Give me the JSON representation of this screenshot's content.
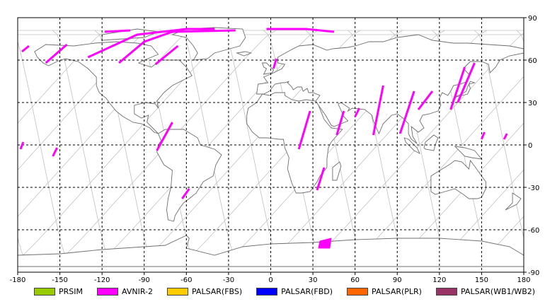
{
  "map": {
    "lon_ticks": [
      "-180",
      "-150",
      "-120",
      "-90",
      "-60",
      "-30",
      "0",
      "30",
      "60",
      "90",
      "120",
      "150",
      "180"
    ],
    "lat_ticks": [
      "90",
      "60",
      "30",
      "0",
      "-30",
      "-60",
      "-90"
    ],
    "lon_range": [
      -180,
      180
    ],
    "lat_range": [
      -90,
      90
    ],
    "grid": "dashed every 30 degrees",
    "swath_color": "#ff00ff",
    "orbit_color": "#c0c0c0",
    "coast_color": "#6e6e6e"
  },
  "legend": [
    {
      "label": "PRSIM",
      "color": "#99cc00"
    },
    {
      "label": "AVNIR-2",
      "color": "#ff00ff"
    },
    {
      "label": "PALSAR(FBS)",
      "color": "#ffcc00"
    },
    {
      "label": "PALSAR(FBD)",
      "color": "#0000ff"
    },
    {
      "label": "PALSAR(PLR)",
      "color": "#ff6600"
    },
    {
      "label": "PALSAR(WB1/WB2)",
      "color": "#993366"
    }
  ]
}
